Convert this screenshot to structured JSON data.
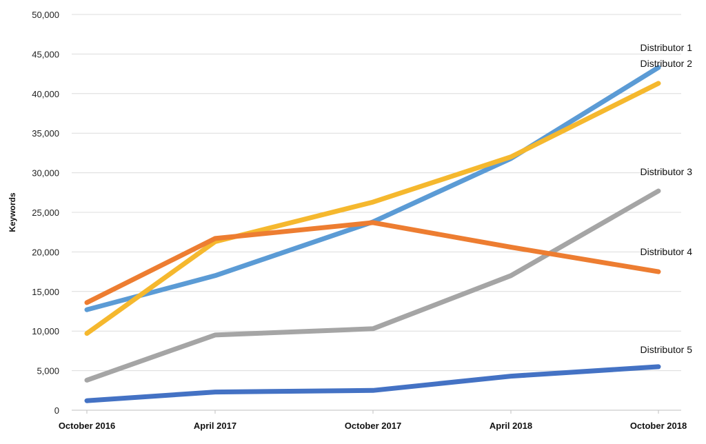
{
  "chart_data": {
    "type": "line",
    "title": "",
    "xlabel": "",
    "ylabel": "Keywords",
    "categories": [
      "October 2016",
      "April 2017",
      "October 2017",
      "April 2018",
      "October 2018"
    ],
    "ylim": [
      0,
      50000
    ],
    "yticks": [
      0,
      5000,
      10000,
      15000,
      20000,
      25000,
      30000,
      35000,
      40000,
      45000,
      50000
    ],
    "ytick_labels": [
      "0",
      "5,000",
      "10,000",
      "15,000",
      "20,000",
      "25,000",
      "30,000",
      "35,000",
      "40,000",
      "45,000",
      "50,000"
    ],
    "grid": true,
    "legend": "labels at line ends (right)",
    "series": [
      {
        "name": "Distributor 1",
        "color": "#5b9bd5",
        "values": [
          12700,
          17000,
          23800,
          31800,
          43300
        ]
      },
      {
        "name": "Distributor 2",
        "color": "#f5b82e",
        "values": [
          9700,
          21300,
          26300,
          32000,
          41300
        ]
      },
      {
        "name": "Distributor 3",
        "color": "#a5a5a5",
        "values": [
          3800,
          9500,
          10300,
          17000,
          27700
        ]
      },
      {
        "name": "Distributor 4",
        "color": "#ed7d31",
        "values": [
          13600,
          21700,
          23700,
          20600,
          17500
        ]
      },
      {
        "name": "Distributor 5",
        "color": "#4472c4",
        "values": [
          1200,
          2300,
          2500,
          4300,
          5500
        ]
      }
    ]
  }
}
